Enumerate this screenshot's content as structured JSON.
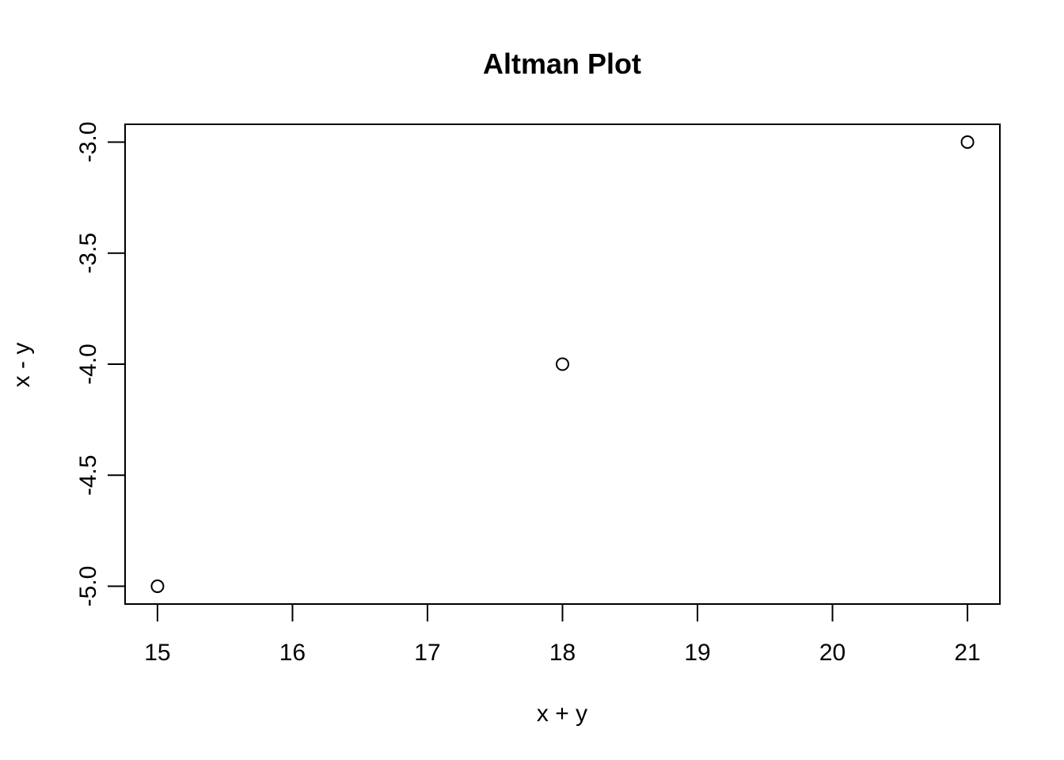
{
  "chart_data": {
    "type": "scatter",
    "title": "Altman Plot",
    "xlabel": "x + y",
    "ylabel": "x - y",
    "x": [
      15,
      18,
      21
    ],
    "y": [
      -5.0,
      -4.0,
      -3.0
    ],
    "xlim": [
      14.76,
      21.24
    ],
    "ylim": [
      -5.08,
      -2.92
    ],
    "xticks": [
      15,
      16,
      17,
      18,
      19,
      20,
      21
    ],
    "xtick_labels": [
      "15",
      "16",
      "17",
      "18",
      "19",
      "20",
      "21"
    ],
    "yticks": [
      -5.0,
      -4.5,
      -4.0,
      -3.5,
      -3.0
    ],
    "ytick_labels": [
      "-5.0",
      "-4.5",
      "-4.0",
      "-3.5",
      "-3.0"
    ],
    "marker": "open-circle",
    "grid": false,
    "colors": {
      "point": "#000000",
      "axis": "#000000",
      "background": "#ffffff"
    }
  }
}
